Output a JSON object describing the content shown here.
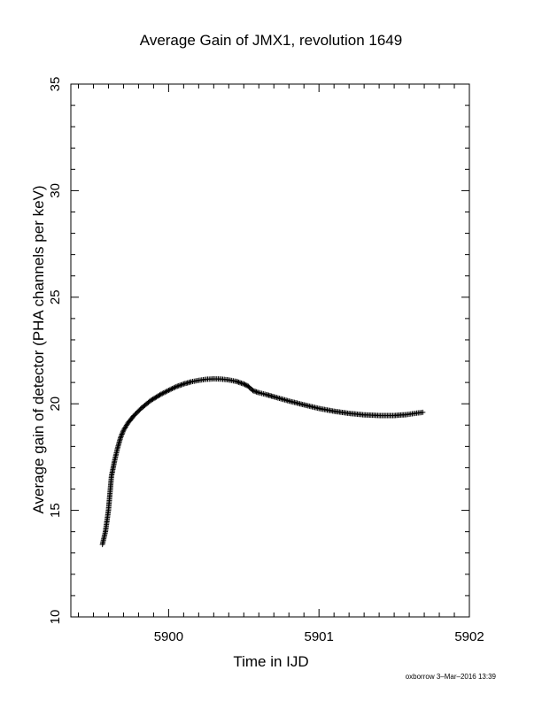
{
  "chart_data": {
    "type": "scatter",
    "title": "Average Gain of JMX1, revolution 1649",
    "xlabel": "Time in IJD",
    "ylabel": "Average gain of detector (PHA channels per keV)",
    "xlim": [
      5899.35,
      5902
    ],
    "ylim": [
      10,
      35
    ],
    "xticks": [
      5900,
      5901,
      5902
    ],
    "yticks": [
      10,
      15,
      20,
      25,
      30,
      35
    ],
    "marker": "+",
    "grid": false,
    "curve_points": [
      [
        5899.56,
        13.4
      ],
      [
        5899.58,
        14.0
      ],
      [
        5899.6,
        15.0
      ],
      [
        5899.61,
        15.8
      ],
      [
        5899.62,
        16.6
      ],
      [
        5899.64,
        17.3
      ],
      [
        5899.66,
        17.9
      ],
      [
        5899.68,
        18.4
      ],
      [
        5899.7,
        18.75
      ],
      [
        5899.73,
        19.1
      ],
      [
        5899.77,
        19.45
      ],
      [
        5899.82,
        19.8
      ],
      [
        5899.88,
        20.15
      ],
      [
        5899.95,
        20.45
      ],
      [
        5900.0,
        20.63
      ],
      [
        5900.05,
        20.8
      ],
      [
        5900.1,
        20.93
      ],
      [
        5900.15,
        21.03
      ],
      [
        5900.2,
        21.1
      ],
      [
        5900.25,
        21.15
      ],
      [
        5900.3,
        21.17
      ],
      [
        5900.35,
        21.16
      ],
      [
        5900.4,
        21.12
      ],
      [
        5900.45,
        21.05
      ],
      [
        5900.5,
        20.93
      ],
      [
        5900.53,
        20.82
      ],
      [
        5900.56,
        20.62
      ],
      [
        5900.6,
        20.52
      ],
      [
        5900.65,
        20.43
      ],
      [
        5900.7,
        20.33
      ],
      [
        5900.8,
        20.13
      ],
      [
        5900.9,
        19.95
      ],
      [
        5901.0,
        19.78
      ],
      [
        5901.1,
        19.65
      ],
      [
        5901.2,
        19.55
      ],
      [
        5901.3,
        19.48
      ],
      [
        5901.4,
        19.45
      ],
      [
        5901.5,
        19.45
      ],
      [
        5901.58,
        19.49
      ],
      [
        5901.64,
        19.55
      ],
      [
        5901.69,
        19.6
      ]
    ]
  },
  "footer": {
    "credit": "oxborrow  3–Mar–2016 13:39"
  }
}
